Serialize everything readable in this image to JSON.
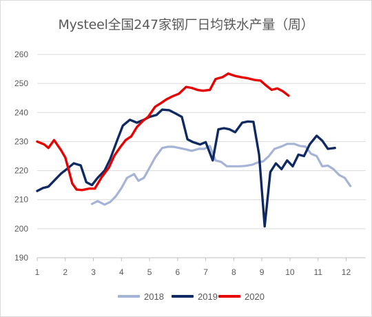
{
  "chart_data": {
    "type": "line",
    "title": "Mysteel全国247家钢厂日均铁水产量（周）",
    "xlabel": "",
    "ylabel": "",
    "xlim": [
      1,
      12.7
    ],
    "ylim": [
      190,
      260
    ],
    "x_ticks": [
      "1",
      "2",
      "3",
      "4",
      "5",
      "6",
      "7",
      "8",
      "9",
      "10",
      "11",
      "12"
    ],
    "y_ticks": [
      "190",
      "200",
      "210",
      "220",
      "230",
      "240",
      "250",
      "260"
    ],
    "grid": true,
    "legend_position": "bottom",
    "series": [
      {
        "name": "2018",
        "color": "#a5b4d6",
        "points": [
          [
            2.95,
            208.5
          ],
          [
            3.15,
            209.5
          ],
          [
            3.4,
            208.3
          ],
          [
            3.6,
            209.2
          ],
          [
            3.8,
            211.2
          ],
          [
            4.0,
            214.0
          ],
          [
            4.2,
            217.5
          ],
          [
            4.45,
            218.8
          ],
          [
            4.6,
            216.5
          ],
          [
            4.8,
            217.5
          ],
          [
            5.0,
            221.0
          ],
          [
            5.2,
            224.5
          ],
          [
            5.45,
            227.8
          ],
          [
            5.65,
            228.2
          ],
          [
            5.85,
            228.2
          ],
          [
            6.05,
            227.8
          ],
          [
            6.3,
            227.3
          ],
          [
            6.5,
            226.8
          ],
          [
            6.75,
            227.5
          ],
          [
            6.95,
            227.5
          ],
          [
            7.15,
            228.5
          ],
          [
            7.35,
            223.5
          ],
          [
            7.55,
            223.0
          ],
          [
            7.75,
            221.5
          ],
          [
            8.0,
            221.5
          ],
          [
            8.2,
            221.5
          ],
          [
            8.4,
            221.6
          ],
          [
            8.65,
            222.0
          ],
          [
            8.85,
            222.8
          ],
          [
            9.05,
            223.2
          ],
          [
            9.25,
            225.0
          ],
          [
            9.45,
            227.5
          ],
          [
            9.7,
            228.3
          ],
          [
            9.9,
            229.2
          ],
          [
            10.15,
            229.2
          ],
          [
            10.35,
            228.5
          ],
          [
            10.55,
            228.3
          ],
          [
            10.75,
            225.8
          ],
          [
            10.95,
            225.0
          ],
          [
            11.15,
            221.5
          ],
          [
            11.35,
            221.7
          ],
          [
            11.55,
            220.5
          ],
          [
            11.75,
            218.5
          ],
          [
            11.95,
            217.5
          ],
          [
            12.15,
            214.7
          ]
        ]
      },
      {
        "name": "2019",
        "color": "#0f2a63",
        "points": [
          [
            1.0,
            213.0
          ],
          [
            1.2,
            214.0
          ],
          [
            1.4,
            214.5
          ],
          [
            1.65,
            217.0
          ],
          [
            1.85,
            219.0
          ],
          [
            2.05,
            220.5
          ],
          [
            2.3,
            222.5
          ],
          [
            2.55,
            221.8
          ],
          [
            2.75,
            216.0
          ],
          [
            2.95,
            215.0
          ],
          [
            3.15,
            217.5
          ],
          [
            3.4,
            220.0
          ],
          [
            3.6,
            224.0
          ],
          [
            3.85,
            230.5
          ],
          [
            4.05,
            235.5
          ],
          [
            4.3,
            237.5
          ],
          [
            4.55,
            236.5
          ],
          [
            4.8,
            237.5
          ],
          [
            5.0,
            238.5
          ],
          [
            5.25,
            239.2
          ],
          [
            5.45,
            241.0
          ],
          [
            5.7,
            240.8
          ],
          [
            5.9,
            239.8
          ],
          [
            6.15,
            238.5
          ],
          [
            6.35,
            230.8
          ],
          [
            6.55,
            229.8
          ],
          [
            6.8,
            229.0
          ],
          [
            7.0,
            229.8
          ],
          [
            7.25,
            223.5
          ],
          [
            7.45,
            234.2
          ],
          [
            7.65,
            234.6
          ],
          [
            7.85,
            234.2
          ],
          [
            8.05,
            233.2
          ],
          [
            8.3,
            236.5
          ],
          [
            8.5,
            236.9
          ],
          [
            8.7,
            236.8
          ],
          [
            8.9,
            225.5
          ],
          [
            9.1,
            200.8
          ],
          [
            9.3,
            219.5
          ],
          [
            9.5,
            222.5
          ],
          [
            9.7,
            220.5
          ],
          [
            9.9,
            223.5
          ],
          [
            10.1,
            221.5
          ],
          [
            10.3,
            225.5
          ],
          [
            10.5,
            225.0
          ],
          [
            10.7,
            229.0
          ],
          [
            10.95,
            232.0
          ],
          [
            11.15,
            230.3
          ],
          [
            11.35,
            227.5
          ],
          [
            11.6,
            227.8
          ]
        ]
      },
      {
        "name": "2020",
        "color": "#e60000",
        "points": [
          [
            1.0,
            230.0
          ],
          [
            1.25,
            229.0
          ],
          [
            1.4,
            227.8
          ],
          [
            1.6,
            230.5
          ],
          [
            1.85,
            227.0
          ],
          [
            2.0,
            224.5
          ],
          [
            2.25,
            215.5
          ],
          [
            2.4,
            213.5
          ],
          [
            2.6,
            213.3
          ],
          [
            2.85,
            213.8
          ],
          [
            3.05,
            213.8
          ],
          [
            3.3,
            217.8
          ],
          [
            3.55,
            221.0
          ],
          [
            3.75,
            225.2
          ],
          [
            3.95,
            228.0
          ],
          [
            4.15,
            230.5
          ],
          [
            4.35,
            231.8
          ],
          [
            4.55,
            235.0
          ],
          [
            4.75,
            237.0
          ],
          [
            4.95,
            238.5
          ],
          [
            5.2,
            242.0
          ],
          [
            5.4,
            243.2
          ],
          [
            5.6,
            244.5
          ],
          [
            5.8,
            245.5
          ],
          [
            6.05,
            246.5
          ],
          [
            6.3,
            248.8
          ],
          [
            6.5,
            248.5
          ],
          [
            6.7,
            247.8
          ],
          [
            6.9,
            247.5
          ],
          [
            7.15,
            247.8
          ],
          [
            7.35,
            251.5
          ],
          [
            7.6,
            252.2
          ],
          [
            7.8,
            253.4
          ],
          [
            8.05,
            252.6
          ],
          [
            8.25,
            252.2
          ],
          [
            8.5,
            251.8
          ],
          [
            8.75,
            251.2
          ],
          [
            8.95,
            251.0
          ],
          [
            9.15,
            249.3
          ],
          [
            9.35,
            247.8
          ],
          [
            9.55,
            248.3
          ],
          [
            9.75,
            247.3
          ],
          [
            9.95,
            245.8
          ]
        ]
      }
    ]
  }
}
